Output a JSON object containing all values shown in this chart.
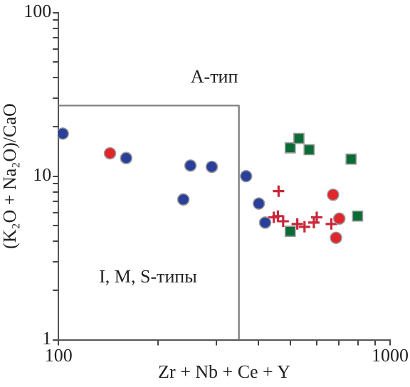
{
  "chart_data": {
    "type": "scatter",
    "xlabel": "Zr + Nb + Ce + Y",
    "ylabel": "(K₂O + Na₂O)/CaO",
    "log": "xy",
    "grid": false,
    "legend": false,
    "xlim": [
      100,
      1000
    ],
    "xticks": [
      100,
      {
        "value": 200,
        "label": null
      },
      {
        "value": 300,
        "label": null
      },
      {
        "value": 400,
        "label": null
      },
      {
        "value": 500,
        "label": null
      },
      {
        "value": 600,
        "label": null
      },
      {
        "value": 700,
        "label": null
      },
      {
        "value": 800,
        "label": null
      },
      {
        "value": 900,
        "label": null
      },
      1000
    ],
    "ylim": [
      1,
      100
    ],
    "yticks": [
      1,
      {
        "value": 2,
        "label": null
      },
      {
        "value": 3,
        "label": null
      },
      {
        "value": 4,
        "label": null
      },
      {
        "value": 5,
        "label": null
      },
      {
        "value": 6,
        "label": null
      },
      {
        "value": 7,
        "label": null
      },
      {
        "value": 8,
        "label": null
      },
      {
        "value": 9,
        "label": null
      },
      10,
      {
        "value": 20,
        "label": null
      },
      {
        "value": 30,
        "label": null
      },
      {
        "value": 40,
        "label": null
      },
      {
        "value": 50,
        "label": null
      },
      {
        "value": 60,
        "label": null
      },
      {
        "value": 70,
        "label": null
      },
      {
        "value": 80,
        "label": null
      },
      {
        "value": 90,
        "label": null
      },
      100
    ],
    "annotations": [
      "А-тип",
      "I, M, S-типы"
    ],
    "series": [
      {
        "type": "line",
        "color": "#808080",
        "marker": "none",
        "line_style": "solid",
        "x": [
          100,
          350,
          350
        ],
        "values": [
          27,
          27,
          1
        ]
      },
      {
        "marker": "circle",
        "color": "#2a3f9a",
        "x": [
          103,
          160,
          250,
          290,
          368,
          238,
          402,
          420
        ],
        "values": [
          18.2,
          12.9,
          11.6,
          11.4,
          10,
          7.2,
          6.8,
          5.2
        ]
      },
      {
        "marker": "circle",
        "color": "#e0262b",
        "x": [
          143,
          673,
          703,
          687
        ],
        "values": [
          13.8,
          7.7,
          5.5,
          4.2
        ]
      },
      {
        "marker": "square",
        "color": "#0a6b36",
        "x": [
          500,
          531,
          570,
          763,
          798,
          500
        ],
        "values": [
          14.9,
          17,
          14.5,
          12.7,
          5.7,
          4.6
        ]
      },
      {
        "marker": "cross",
        "color": "#c8283a",
        "x": [
          461,
          446,
          459,
          476,
          525,
          552,
          589,
          601,
          665
        ],
        "values": [
          8.1,
          5.6,
          5.7,
          5.3,
          5.1,
          4.9,
          5.2,
          5.6,
          5.1
        ]
      }
    ]
  }
}
